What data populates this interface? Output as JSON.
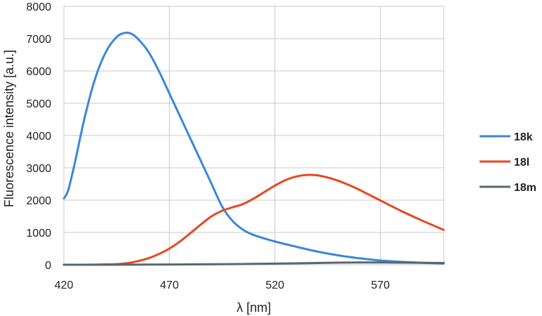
{
  "chart_data": {
    "type": "line",
    "title": "",
    "xlabel": "λ [nm]",
    "ylabel": "Fluorescence intensity [a.u.]",
    "xlim": [
      420,
      600
    ],
    "ylim": [
      0,
      8000
    ],
    "xticks": [
      420,
      470,
      520,
      570
    ],
    "yticks": [
      0,
      1000,
      2000,
      3000,
      4000,
      5000,
      6000,
      7000,
      8000
    ],
    "grid": true,
    "legend_position": "right",
    "series": [
      {
        "name": "18k",
        "color": "#3a87d8",
        "x": [
          420,
          422,
          425,
          430,
          435,
          440,
          445,
          449,
          452,
          455,
          460,
          465,
          470,
          475,
          480,
          485,
          490,
          495,
          500,
          505,
          510,
          520,
          530,
          540,
          550,
          560,
          570,
          580,
          590,
          600
        ],
        "y": [
          2050,
          2300,
          3100,
          4600,
          5800,
          6600,
          7050,
          7180,
          7150,
          7000,
          6600,
          6000,
          5300,
          4600,
          3900,
          3200,
          2500,
          1800,
          1350,
          1080,
          920,
          720,
          560,
          410,
          290,
          200,
          130,
          90,
          60,
          40
        ]
      },
      {
        "name": "18l",
        "color": "#e8471f",
        "x": [
          420,
          430,
          440,
          445,
          450,
          455,
          460,
          465,
          470,
          475,
          480,
          485,
          490,
          495,
          500,
          505,
          510,
          515,
          520,
          525,
          530,
          535,
          540,
          545,
          550,
          555,
          560,
          570,
          580,
          590,
          600
        ],
        "y": [
          0,
          0,
          10,
          20,
          50,
          110,
          200,
          330,
          500,
          720,
          980,
          1250,
          1500,
          1670,
          1780,
          1880,
          2050,
          2250,
          2450,
          2620,
          2730,
          2780,
          2770,
          2700,
          2600,
          2470,
          2320,
          1990,
          1660,
          1360,
          1080
        ]
      },
      {
        "name": "18m",
        "color": "#5a6670",
        "x": [
          420,
          440,
          460,
          480,
          500,
          520,
          540,
          550,
          560,
          570,
          580,
          590,
          600
        ],
        "y": [
          0,
          0,
          5,
          10,
          20,
          35,
          55,
          65,
          70,
          70,
          65,
          60,
          55
        ]
      }
    ]
  }
}
